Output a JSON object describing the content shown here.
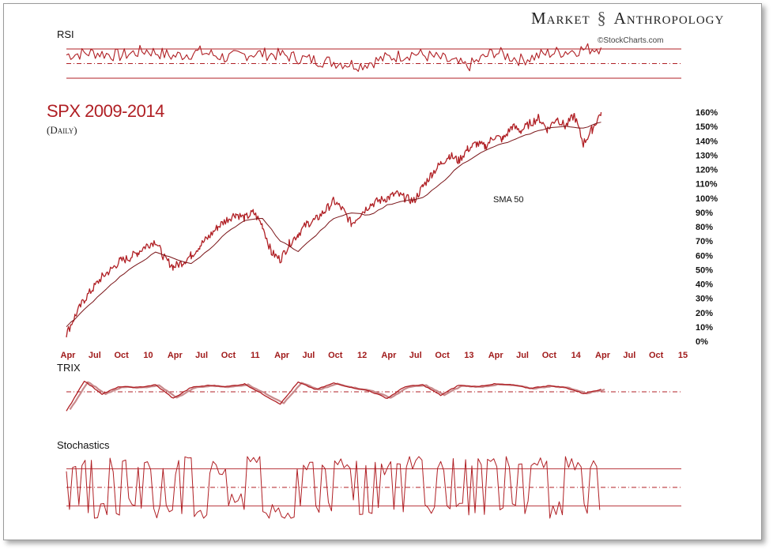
{
  "header": {
    "brand_left": "Market",
    "brand_right": "Anthropology",
    "credit": "©StockCharts.com"
  },
  "colors": {
    "series": "#b01f24",
    "series_light": "#c98a8c",
    "axis_label": "#a01a1a"
  },
  "chart_data": [
    {
      "type": "line",
      "panel": "RSI",
      "title": "RSI",
      "reference_lines": [
        70,
        50,
        30
      ],
      "reference_styles": [
        "solid",
        "dash-dot",
        "solid"
      ],
      "ylim": [
        20,
        80
      ],
      "x": [
        0,
        3,
        6,
        9,
        12,
        15,
        18,
        21,
        24,
        27,
        30,
        33,
        36,
        39,
        42,
        45,
        48,
        51,
        54,
        57,
        60
      ],
      "values": [
        62,
        65,
        61,
        68,
        60,
        66,
        58,
        64,
        62,
        56,
        52,
        48,
        58,
        64,
        57,
        46,
        66,
        55,
        64,
        68,
        72
      ]
    },
    {
      "type": "line",
      "panel": "main",
      "title": "SPX 2009-2014",
      "subtitle": "(Daily)",
      "x_ticks": [
        "Apr",
        "Jul",
        "Oct",
        "10",
        "Apr",
        "Jul",
        "Oct",
        "11",
        "Apr",
        "Jul",
        "Oct",
        "12",
        "Apr",
        "Jul",
        "Oct",
        "13",
        "Apr",
        "Jul",
        "Oct",
        "14",
        "Apr",
        "Jul",
        "Oct",
        "15"
      ],
      "y_ticks": [
        "0%",
        "10%",
        "20%",
        "30%",
        "40%",
        "50%",
        "60%",
        "70%",
        "80%",
        "90%",
        "100%",
        "110%",
        "120%",
        "130%",
        "140%",
        "150%",
        "160%"
      ],
      "ylim": [
        0,
        160
      ],
      "xlim": [
        0,
        69
      ],
      "annotation": "SMA 50",
      "series": [
        {
          "name": "SPX",
          "x": [
            0,
            1,
            2,
            3,
            4,
            5,
            6,
            7,
            8,
            9,
            10,
            11,
            12,
            13,
            14,
            15,
            16,
            17,
            18,
            19,
            20,
            21,
            22,
            23,
            24,
            25,
            26,
            27,
            28,
            29,
            30,
            31,
            32,
            33,
            34,
            35,
            36,
            37,
            38,
            39,
            40,
            41,
            42,
            43,
            44,
            45,
            46,
            47,
            48,
            49,
            50,
            51,
            52,
            53,
            54,
            55,
            56,
            57,
            58,
            59,
            60
          ],
          "values": [
            5,
            18,
            29,
            37,
            45,
            50,
            56,
            58,
            62,
            67,
            70,
            58,
            52,
            55,
            60,
            67,
            73,
            80,
            85,
            89,
            86,
            90,
            81,
            62,
            57,
            68,
            75,
            82,
            85,
            91,
            98,
            92,
            82,
            89,
            95,
            98,
            100,
            103,
            100,
            98,
            108,
            117,
            124,
            130,
            126,
            134,
            138,
            136,
            143,
            141,
            150,
            147,
            152,
            156,
            148,
            156,
            150,
            158,
            138,
            148,
            160
          ]
        },
        {
          "name": "SMA 50",
          "x": [
            0,
            2,
            4,
            6,
            8,
            10,
            12,
            14,
            16,
            18,
            20,
            22,
            24,
            26,
            28,
            30,
            32,
            34,
            36,
            38,
            40,
            42,
            44,
            46,
            48,
            50,
            52,
            54,
            56,
            58,
            60
          ],
          "values": [
            10,
            22,
            34,
            45,
            54,
            62,
            58,
            54,
            64,
            76,
            84,
            86,
            70,
            63,
            74,
            86,
            90,
            88,
            95,
            98,
            100,
            110,
            122,
            130,
            136,
            140,
            145,
            149,
            150,
            149,
            153
          ]
        }
      ]
    },
    {
      "type": "line",
      "panel": "TRIX",
      "title": "TRIX",
      "reference_lines": [
        0
      ],
      "ylim": [
        -0.5,
        0.4
      ],
      "x": [
        0,
        2,
        4,
        6,
        8,
        10,
        12,
        14,
        16,
        18,
        20,
        22,
        24,
        26,
        28,
        30,
        32,
        34,
        36,
        38,
        40,
        42,
        44,
        46,
        48,
        50,
        52,
        54,
        56,
        58,
        60
      ],
      "values": [
        -0.45,
        0.25,
        -0.05,
        0.12,
        0.1,
        0.16,
        -0.15,
        0.1,
        0.15,
        0.12,
        0.18,
        -0.05,
        -0.28,
        0.22,
        0.05,
        0.2,
        0.1,
        0.02,
        -0.15,
        0.12,
        0.16,
        -0.08,
        0.15,
        0.12,
        0.18,
        0.16,
        0.08,
        0.14,
        0.1,
        -0.04,
        0.06
      ]
    },
    {
      "type": "line",
      "panel": "Stochastics",
      "title": "Stochastics",
      "reference_lines": [
        80,
        50,
        20
      ],
      "ylim": [
        0,
        100
      ],
      "x": [
        0,
        2,
        4,
        6,
        8,
        10,
        12,
        14,
        16,
        18,
        20,
        22,
        24,
        26,
        28,
        30,
        32,
        34,
        36,
        38,
        40,
        42,
        44,
        46,
        48,
        50,
        52,
        54,
        56,
        58,
        60
      ],
      "values": [
        90,
        10,
        88,
        20,
        92,
        15,
        85,
        5,
        80,
        30,
        95,
        10,
        5,
        90,
        20,
        92,
        10,
        85,
        25,
        94,
        8,
        90,
        15,
        88,
        95,
        20,
        90,
        10,
        85,
        5,
        92
      ]
    }
  ]
}
